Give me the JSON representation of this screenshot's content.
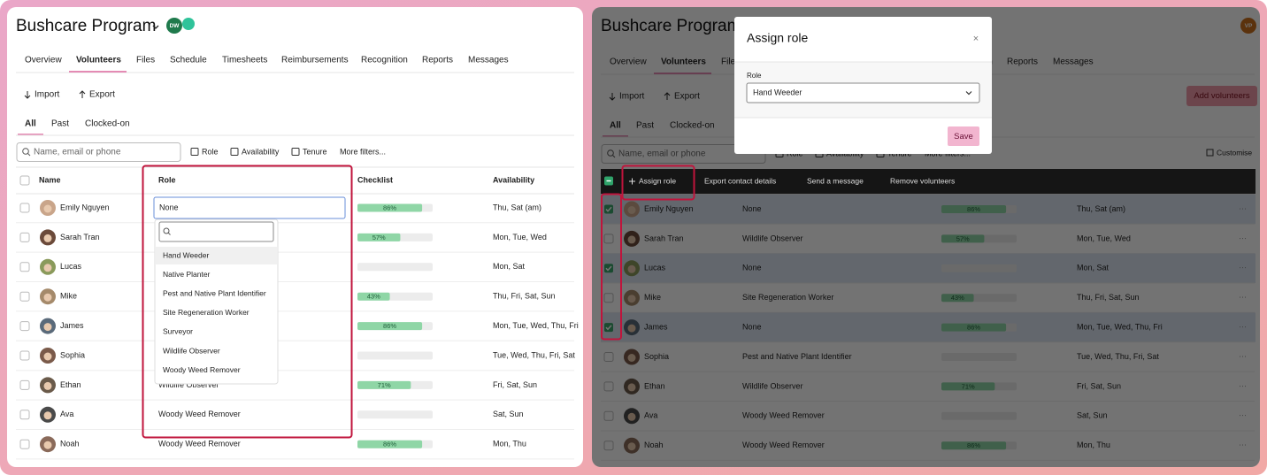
{
  "app": {
    "title": "Bushcare Program",
    "tabs": [
      "Overview",
      "Volunteers",
      "Files",
      "Schedule",
      "Timesheets",
      "Reimbursements",
      "Recognition",
      "Reports",
      "Messages"
    ],
    "active_tab": 1,
    "actions": [
      "Import",
      "Export"
    ],
    "views": [
      "All",
      "Past",
      "Clocked-on"
    ],
    "search_placeholder": "Name, email or phone",
    "filters": [
      "Role",
      "Availability",
      "Tenure",
      "More filters..."
    ],
    "columns": [
      "Name",
      "Role",
      "Checklist",
      "Availability"
    ],
    "rows": [
      {
        "name": "Emily Nguyen",
        "role": "None",
        "checklist": 86,
        "checklist_label": "86%",
        "availability": "Thu, Sat (am)",
        "selected": true
      },
      {
        "name": "Sarah Tran",
        "role": "Wildlife Observer",
        "checklist": 57,
        "checklist_label": "57%",
        "availability": "Mon, Tue, Wed",
        "selected": false
      },
      {
        "name": "Lucas",
        "role": "None",
        "checklist": null,
        "checklist_label": null,
        "availability": "Mon, Sat",
        "selected": true
      },
      {
        "name": "Mike",
        "role": "Site Regeneration Worker",
        "checklist": 43,
        "checklist_label": "43%",
        "availability": "Thu, Fri, Sat, Sun",
        "selected": false
      },
      {
        "name": "James",
        "role": "None",
        "checklist": 86,
        "checklist_label": "86%",
        "availability": "Mon, Tue, Wed, Thu, Fri",
        "selected": true
      },
      {
        "name": "Sophia",
        "role": "Pest and Native Plant Identifier",
        "checklist": null,
        "checklist_label": null,
        "availability": "Tue, Wed, Thu, Fri, Sat",
        "selected": false
      },
      {
        "name": "Ethan",
        "role": "Wildlife Observer",
        "checklist": 71,
        "checklist_label": "71%",
        "availability": "Fri, Sat, Sun",
        "selected": false
      },
      {
        "name": "Ava",
        "role": "Woody Weed Remover",
        "checklist": null,
        "checklist_label": null,
        "availability": "Sat, Sun",
        "selected": false
      },
      {
        "name": "Noah",
        "role": "Woody Weed Remover",
        "checklist": 86,
        "checklist_label": "86%",
        "availability": "Mon, Thu",
        "selected": false
      }
    ]
  },
  "left": {
    "avatar": "DW",
    "role_options": [
      "Hand Weeder",
      "Native Planter",
      "Pest and Native Plant Identifier",
      "Site Regeneration Worker",
      "Surveyor",
      "Wildlife Observer",
      "Woody Weed Remover"
    ]
  },
  "right": {
    "avatar": "VP",
    "add_button": "Add volunteers",
    "customise": "Customise",
    "bulk_actions": [
      "Assign role",
      "Export contact details",
      "Send a message",
      "Remove volunteers"
    ],
    "modal": {
      "title": "Assign role",
      "close": "×",
      "field_label": "Role",
      "selected": "Hand Weeder",
      "save": "Save"
    }
  }
}
